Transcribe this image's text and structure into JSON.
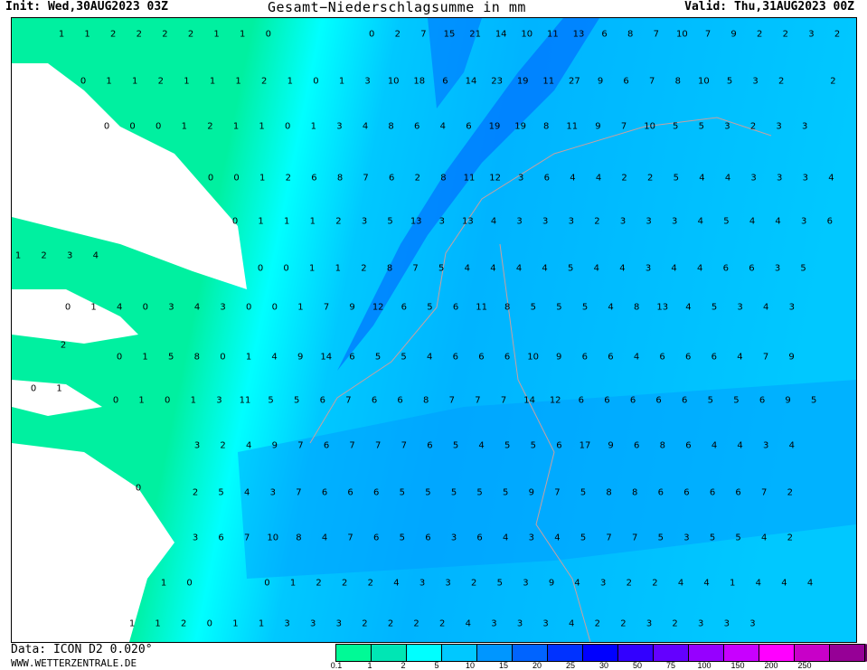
{
  "header": {
    "init": "Init: Wed,30AUG2023 03Z",
    "title": "Gesamt−Niederschlagsumme in mm",
    "valid": "Valid: Thu,31AUG2023 00Z"
  },
  "footer": {
    "data_source": "Data: ICON D2 0.020°",
    "website": "WWW.WETTERZENTRALE.DE"
  },
  "legend": {
    "ticks": [
      "0.1",
      "1",
      "2",
      "5",
      "10",
      "15",
      "20",
      "25",
      "30",
      "50",
      "75",
      "100",
      "150",
      "200",
      "250"
    ],
    "colors": [
      "#00fa96",
      "#00e6b4",
      "#00ffff",
      "#00c8ff",
      "#0096ff",
      "#0064ff",
      "#0032ff",
      "#0000ff",
      "#3200ff",
      "#6400ff",
      "#9600ff",
      "#c800ff",
      "#ff00ff",
      "#c800c8",
      "#960096",
      "#640064"
    ]
  },
  "map": {
    "colors": {
      "light": "#00f0a0",
      "cyan": "#00ffff",
      "sky": "#00c8ff",
      "blue": "#0096ff",
      "deep": "#0050ff",
      "land": "#ffffff",
      "border": "#c8a0a0"
    },
    "rows": [
      [
        1,
        1,
        2,
        2,
        2,
        2,
        1,
        1,
        0,
        null,
        null,
        null,
        0,
        2,
        7,
        15,
        21,
        14,
        10,
        11,
        13,
        6,
        8,
        7,
        10,
        7,
        9,
        2,
        2,
        3,
        2
      ],
      [
        0,
        1,
        1,
        2,
        1,
        1,
        1,
        2,
        1,
        0,
        1,
        3,
        10,
        18,
        6,
        14,
        23,
        19,
        11,
        27,
        9,
        6,
        7,
        8,
        10,
        5,
        3,
        2,
        null,
        2
      ],
      [
        0,
        0,
        0,
        1,
        2,
        1,
        1,
        0,
        1,
        3,
        4,
        8,
        6,
        4,
        6,
        19,
        19,
        8,
        11,
        9,
        7,
        10,
        5,
        5,
        3,
        2,
        3,
        3
      ],
      [
        0,
        0,
        1,
        2,
        6,
        8,
        7,
        6,
        2,
        8,
        11,
        12,
        3,
        6,
        4,
        4,
        2,
        2,
        5,
        4,
        4,
        3,
        3,
        3,
        4
      ],
      [
        0,
        1,
        1,
        1,
        2,
        3,
        5,
        13,
        3,
        13,
        4,
        3,
        3,
        3,
        2,
        3,
        3,
        3,
        4,
        5,
        4,
        4,
        3,
        6
      ],
      [
        1,
        2,
        3,
        4
      ],
      [
        0,
        0,
        1,
        1,
        2,
        8,
        7,
        5,
        4,
        4,
        4,
        4,
        5,
        4,
        4,
        3,
        4,
        4,
        6,
        6,
        3,
        5
      ],
      [
        0,
        1,
        4,
        0,
        3,
        4,
        3,
        0,
        0,
        1,
        7,
        9,
        12,
        6,
        5,
        6,
        11,
        8,
        5,
        5,
        5,
        4,
        8,
        13,
        4,
        5,
        3,
        4,
        3
      ],
      [
        2
      ],
      [
        0,
        1,
        5,
        8,
        0,
        1,
        4,
        9,
        14,
        6,
        5,
        5,
        4,
        6,
        6,
        6,
        10,
        9,
        6,
        6,
        4,
        6,
        6,
        6,
        4,
        7,
        9
      ],
      [
        0,
        1
      ],
      [
        0,
        1,
        0,
        1,
        3,
        11,
        5,
        5,
        6,
        7,
        6,
        6,
        8,
        7,
        7,
        7,
        14,
        12,
        6,
        6,
        6,
        6,
        6,
        5,
        5,
        6,
        9,
        5
      ],
      [
        3,
        2,
        4,
        9,
        7,
        6,
        7,
        7,
        7,
        6,
        5,
        4,
        5,
        5,
        6,
        17,
        9,
        6,
        8,
        6,
        4,
        4,
        3,
        4
      ],
      [
        0
      ],
      [
        2,
        5,
        4,
        3,
        7,
        6,
        6,
        6,
        5,
        5,
        5,
        5,
        5,
        9,
        7,
        5,
        8,
        8,
        6,
        6,
        6,
        6,
        7,
        2
      ],
      [
        3,
        6,
        7,
        10,
        8,
        4,
        7,
        6,
        5,
        6,
        3,
        6,
        4,
        3,
        4,
        5,
        7,
        7,
        5,
        3,
        5,
        5,
        4,
        2
      ],
      [
        1,
        0,
        null,
        null,
        0,
        1,
        2,
        2,
        2,
        4,
        3,
        3,
        2,
        5,
        3,
        9,
        4,
        3,
        2,
        2,
        4,
        4,
        1,
        4,
        4,
        4
      ],
      [
        1,
        1,
        2,
        0,
        1,
        1,
        3,
        3,
        3,
        2,
        2,
        2,
        2,
        4,
        3,
        3,
        3,
        4,
        2,
        2,
        3,
        2,
        3,
        3,
        3
      ]
    ]
  }
}
